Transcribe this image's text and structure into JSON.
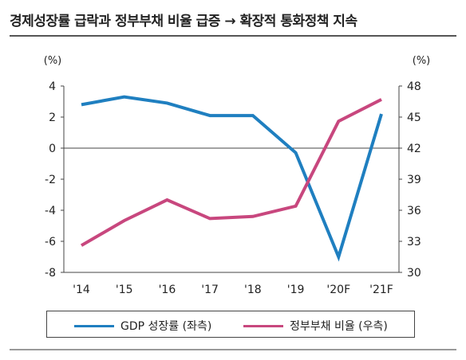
{
  "title": "경제성장률 급락과 정부부채 비율 급증 → 확장적 통화정책 지속",
  "chart_data": {
    "type": "line",
    "categories": [
      "'14",
      "'15",
      "'16",
      "'17",
      "'18",
      "'19",
      "'20F",
      "'21F"
    ],
    "left_axis": {
      "unit_label": "(%)",
      "ylim": [
        -8,
        4
      ],
      "ticks": [
        4,
        2,
        0,
        -2,
        -4,
        -6,
        -8
      ]
    },
    "right_axis": {
      "unit_label": "(%)",
      "ylim": [
        30,
        48
      ],
      "ticks": [
        48,
        45,
        42,
        39,
        36,
        33,
        30
      ]
    },
    "series": [
      {
        "name": "GDP 성장률 (좌측)",
        "axis": "left",
        "color": "#1f7fc0",
        "values": [
          2.8,
          3.3,
          2.9,
          2.1,
          2.1,
          -0.3,
          -7.0,
          2.2
        ]
      },
      {
        "name": "정부부채 비율 (우측)",
        "axis": "right",
        "color": "#c8477e",
        "values": [
          32.6,
          35.0,
          37.0,
          35.2,
          35.4,
          36.4,
          44.6,
          46.7
        ]
      }
    ],
    "grid": false,
    "zero_line": true,
    "legend_position": "bottom"
  }
}
